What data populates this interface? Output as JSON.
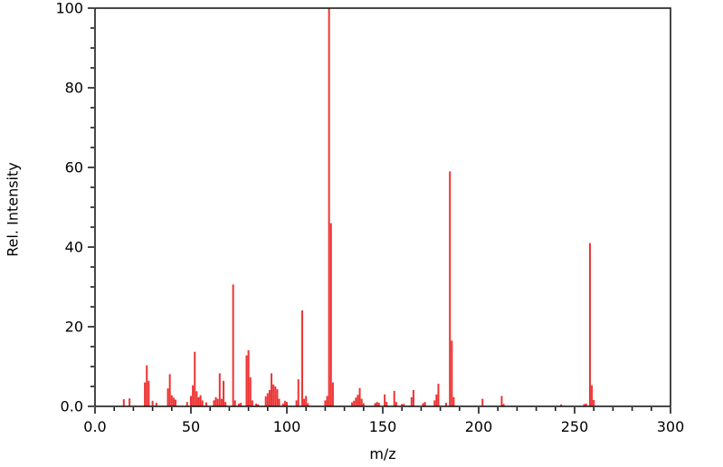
{
  "chart_data": {
    "type": "bar",
    "subtype": "mass-spectrum-stick-plot",
    "title": "",
    "xlabel": "m/z",
    "ylabel": "Rel. Intensity",
    "xlim": [
      0,
      300
    ],
    "ylim": [
      0,
      100
    ],
    "grid": false,
    "legend": null,
    "background_color": "#ffffff",
    "axis_color": "#1a1a1a",
    "bar_color": "#ee3333",
    "x_major_ticks": [
      {
        "value": 0,
        "label": "0.0"
      },
      {
        "value": 50,
        "label": "50"
      },
      {
        "value": 100,
        "label": "100"
      },
      {
        "value": 150,
        "label": "150"
      },
      {
        "value": 200,
        "label": "200"
      },
      {
        "value": 250,
        "label": "250"
      },
      {
        "value": 300,
        "label": "300"
      }
    ],
    "x_minor_step": 10,
    "y_major_ticks": [
      {
        "value": 0,
        "label": "0.0"
      },
      {
        "value": 20,
        "label": "20"
      },
      {
        "value": 40,
        "label": "40"
      },
      {
        "value": 60,
        "label": "60"
      },
      {
        "value": 80,
        "label": "80"
      },
      {
        "value": 100,
        "label": "100"
      }
    ],
    "y_minor_step": 5,
    "points": [
      [
        15,
        1.8
      ],
      [
        18,
        2.0
      ],
      [
        26,
        6.0
      ],
      [
        27,
        10.3
      ],
      [
        28,
        6.4
      ],
      [
        30,
        1.4
      ],
      [
        32,
        0.9
      ],
      [
        38,
        4.5
      ],
      [
        39,
        8.1
      ],
      [
        40,
        2.8
      ],
      [
        41,
        2.2
      ],
      [
        42,
        1.7
      ],
      [
        48,
        1.1
      ],
      [
        50,
        2.6
      ],
      [
        51,
        5.3
      ],
      [
        52,
        13.7
      ],
      [
        53,
        3.8
      ],
      [
        54,
        2.3
      ],
      [
        55,
        2.8
      ],
      [
        56,
        1.5
      ],
      [
        58,
        1.0
      ],
      [
        62,
        1.5
      ],
      [
        63,
        2.3
      ],
      [
        64,
        1.9
      ],
      [
        65,
        8.3
      ],
      [
        66,
        1.9
      ],
      [
        67,
        6.4
      ],
      [
        68,
        1.1
      ],
      [
        72,
        30.6
      ],
      [
        73,
        1.5
      ],
      [
        75,
        0.7
      ],
      [
        76,
        0.9
      ],
      [
        79,
        12.8
      ],
      [
        80,
        14.1
      ],
      [
        81,
        7.3
      ],
      [
        82,
        1.5
      ],
      [
        84,
        0.7
      ],
      [
        85,
        0.5
      ],
      [
        89,
        2.5
      ],
      [
        90,
        3.3
      ],
      [
        91,
        4.1
      ],
      [
        92,
        8.3
      ],
      [
        93,
        5.5
      ],
      [
        94,
        5.0
      ],
      [
        95,
        4.3
      ],
      [
        96,
        1.9
      ],
      [
        98,
        0.7
      ],
      [
        99,
        1.4
      ],
      [
        100,
        1.1
      ],
      [
        105,
        1.5
      ],
      [
        106,
        6.8
      ],
      [
        108,
        24.1
      ],
      [
        109,
        1.9
      ],
      [
        110,
        2.6
      ],
      [
        111,
        0.8
      ],
      [
        120,
        1.5
      ],
      [
        121,
        2.6
      ],
      [
        122,
        100.0
      ],
      [
        123,
        46.0
      ],
      [
        124,
        6.0
      ],
      [
        134,
        1.0
      ],
      [
        135,
        1.4
      ],
      [
        136,
        2.2
      ],
      [
        137,
        2.9
      ],
      [
        138,
        4.6
      ],
      [
        139,
        1.9
      ],
      [
        140,
        0.8
      ],
      [
        146,
        0.8
      ],
      [
        147,
        1.1
      ],
      [
        148,
        0.9
      ],
      [
        151,
        3.0
      ],
      [
        152,
        1.1
      ],
      [
        156,
        3.9
      ],
      [
        157,
        1.1
      ],
      [
        160,
        0.6
      ],
      [
        161,
        0.6
      ],
      [
        165,
        2.3
      ],
      [
        166,
        4.1
      ],
      [
        171,
        0.8
      ],
      [
        172,
        1.1
      ],
      [
        177,
        1.5
      ],
      [
        178,
        3.0
      ],
      [
        179,
        5.7
      ],
      [
        183,
        0.9
      ],
      [
        185,
        59.0
      ],
      [
        186,
        16.5
      ],
      [
        187,
        2.3
      ],
      [
        202,
        1.9
      ],
      [
        212,
        2.6
      ],
      [
        213,
        0.6
      ],
      [
        243,
        0.5
      ],
      [
        255,
        0.6
      ],
      [
        256,
        0.7
      ],
      [
        258,
        41.0
      ],
      [
        259,
        5.3
      ],
      [
        260,
        1.6
      ]
    ]
  }
}
